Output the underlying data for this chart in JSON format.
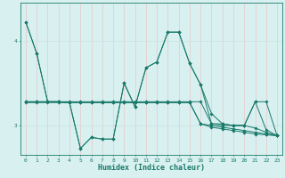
{
  "title": "",
  "xlabel": "Humidex (Indice chaleur)",
  "bg_color": "#d8f0f0",
  "line_color": "#1a7a6a",
  "grid_color_major": "#c8e4e0",
  "grid_color_minor": "#daeee8",
  "tick_color": "#1a7a6a",
  "xlim": [
    -0.5,
    23.5
  ],
  "ylim": [
    2.65,
    4.45
  ],
  "yticks": [
    3,
    4
  ],
  "xticks": [
    0,
    1,
    2,
    3,
    4,
    5,
    6,
    7,
    8,
    9,
    10,
    11,
    12,
    13,
    14,
    15,
    16,
    17,
    18,
    19,
    20,
    21,
    22,
    23
  ],
  "lines": [
    [
      4.22,
      3.85,
      3.28,
      3.28,
      3.27,
      2.73,
      2.86,
      2.84,
      2.84,
      3.5,
      3.22,
      3.68,
      3.75,
      4.1,
      4.1,
      3.73,
      3.48,
      3.14,
      3.02,
      3.0,
      3.0,
      3.28,
      3.28,
      2.88
    ],
    [
      4.22,
      3.85,
      3.28,
      3.28,
      3.27,
      2.73,
      2.86,
      2.84,
      2.84,
      3.5,
      3.22,
      3.68,
      3.75,
      4.1,
      4.1,
      3.73,
      3.48,
      3.02,
      3.02,
      3.0,
      3.0,
      3.28,
      2.95,
      2.88
    ],
    [
      3.28,
      3.28,
      3.28,
      3.28,
      3.28,
      3.28,
      3.28,
      3.28,
      3.28,
      3.28,
      3.28,
      3.28,
      3.28,
      3.28,
      3.28,
      3.28,
      3.28,
      3.02,
      3.0,
      3.0,
      3.0,
      2.97,
      2.92,
      2.88
    ],
    [
      3.28,
      3.28,
      3.28,
      3.28,
      3.27,
      3.27,
      3.27,
      3.27,
      3.27,
      3.27,
      3.27,
      3.27,
      3.27,
      3.27,
      3.27,
      3.27,
      3.02,
      3.0,
      2.98,
      2.96,
      2.94,
      2.92,
      2.9,
      2.88
    ],
    [
      3.27,
      3.27,
      3.27,
      3.27,
      3.27,
      3.27,
      3.27,
      3.27,
      3.27,
      3.27,
      3.27,
      3.27,
      3.27,
      3.27,
      3.27,
      3.27,
      3.02,
      2.98,
      2.96,
      2.94,
      2.92,
      2.9,
      2.89,
      2.88
    ]
  ]
}
